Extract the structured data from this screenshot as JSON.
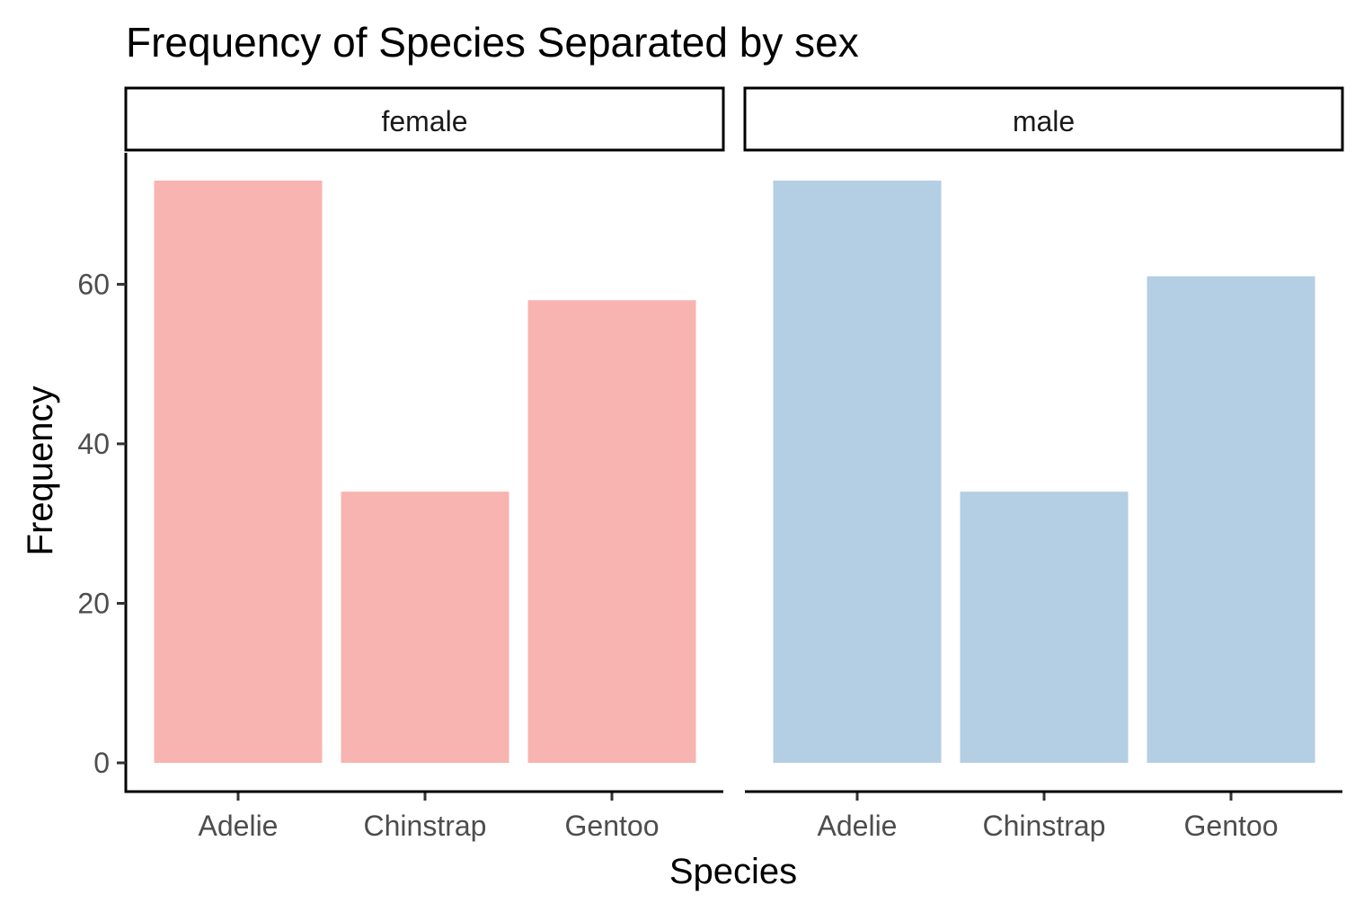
{
  "chart_data": {
    "type": "bar",
    "title": "Frequency of Species Separated by sex",
    "xlabel": "Species",
    "ylabel": "Frequency",
    "categories": [
      "Adelie",
      "Chinstrap",
      "Gentoo"
    ],
    "ylim": [
      0,
      73
    ],
    "yticks": [
      0,
      20,
      40,
      60
    ],
    "facets": [
      {
        "label": "female",
        "color": "#F8B4B0",
        "values": [
          73,
          34,
          58
        ]
      },
      {
        "label": "male",
        "color": "#B4CEE3",
        "values": [
          73,
          34,
          61
        ]
      }
    ]
  }
}
